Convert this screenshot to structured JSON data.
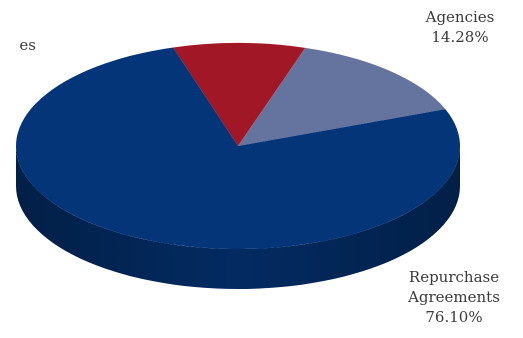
{
  "chart_data": {
    "type": "pie",
    "style": "3d",
    "slices": [
      {
        "label": "Repurchase Agreements",
        "percent_label": "76.10%",
        "value": 76.1,
        "color": "#033578"
      },
      {
        "label": "Agencies",
        "percent_label": "14.28%",
        "value": 14.28,
        "color": "#65739f"
      },
      {
        "label": "",
        "value": 9.62,
        "color": "#a11726"
      }
    ],
    "partial_label": "es"
  }
}
